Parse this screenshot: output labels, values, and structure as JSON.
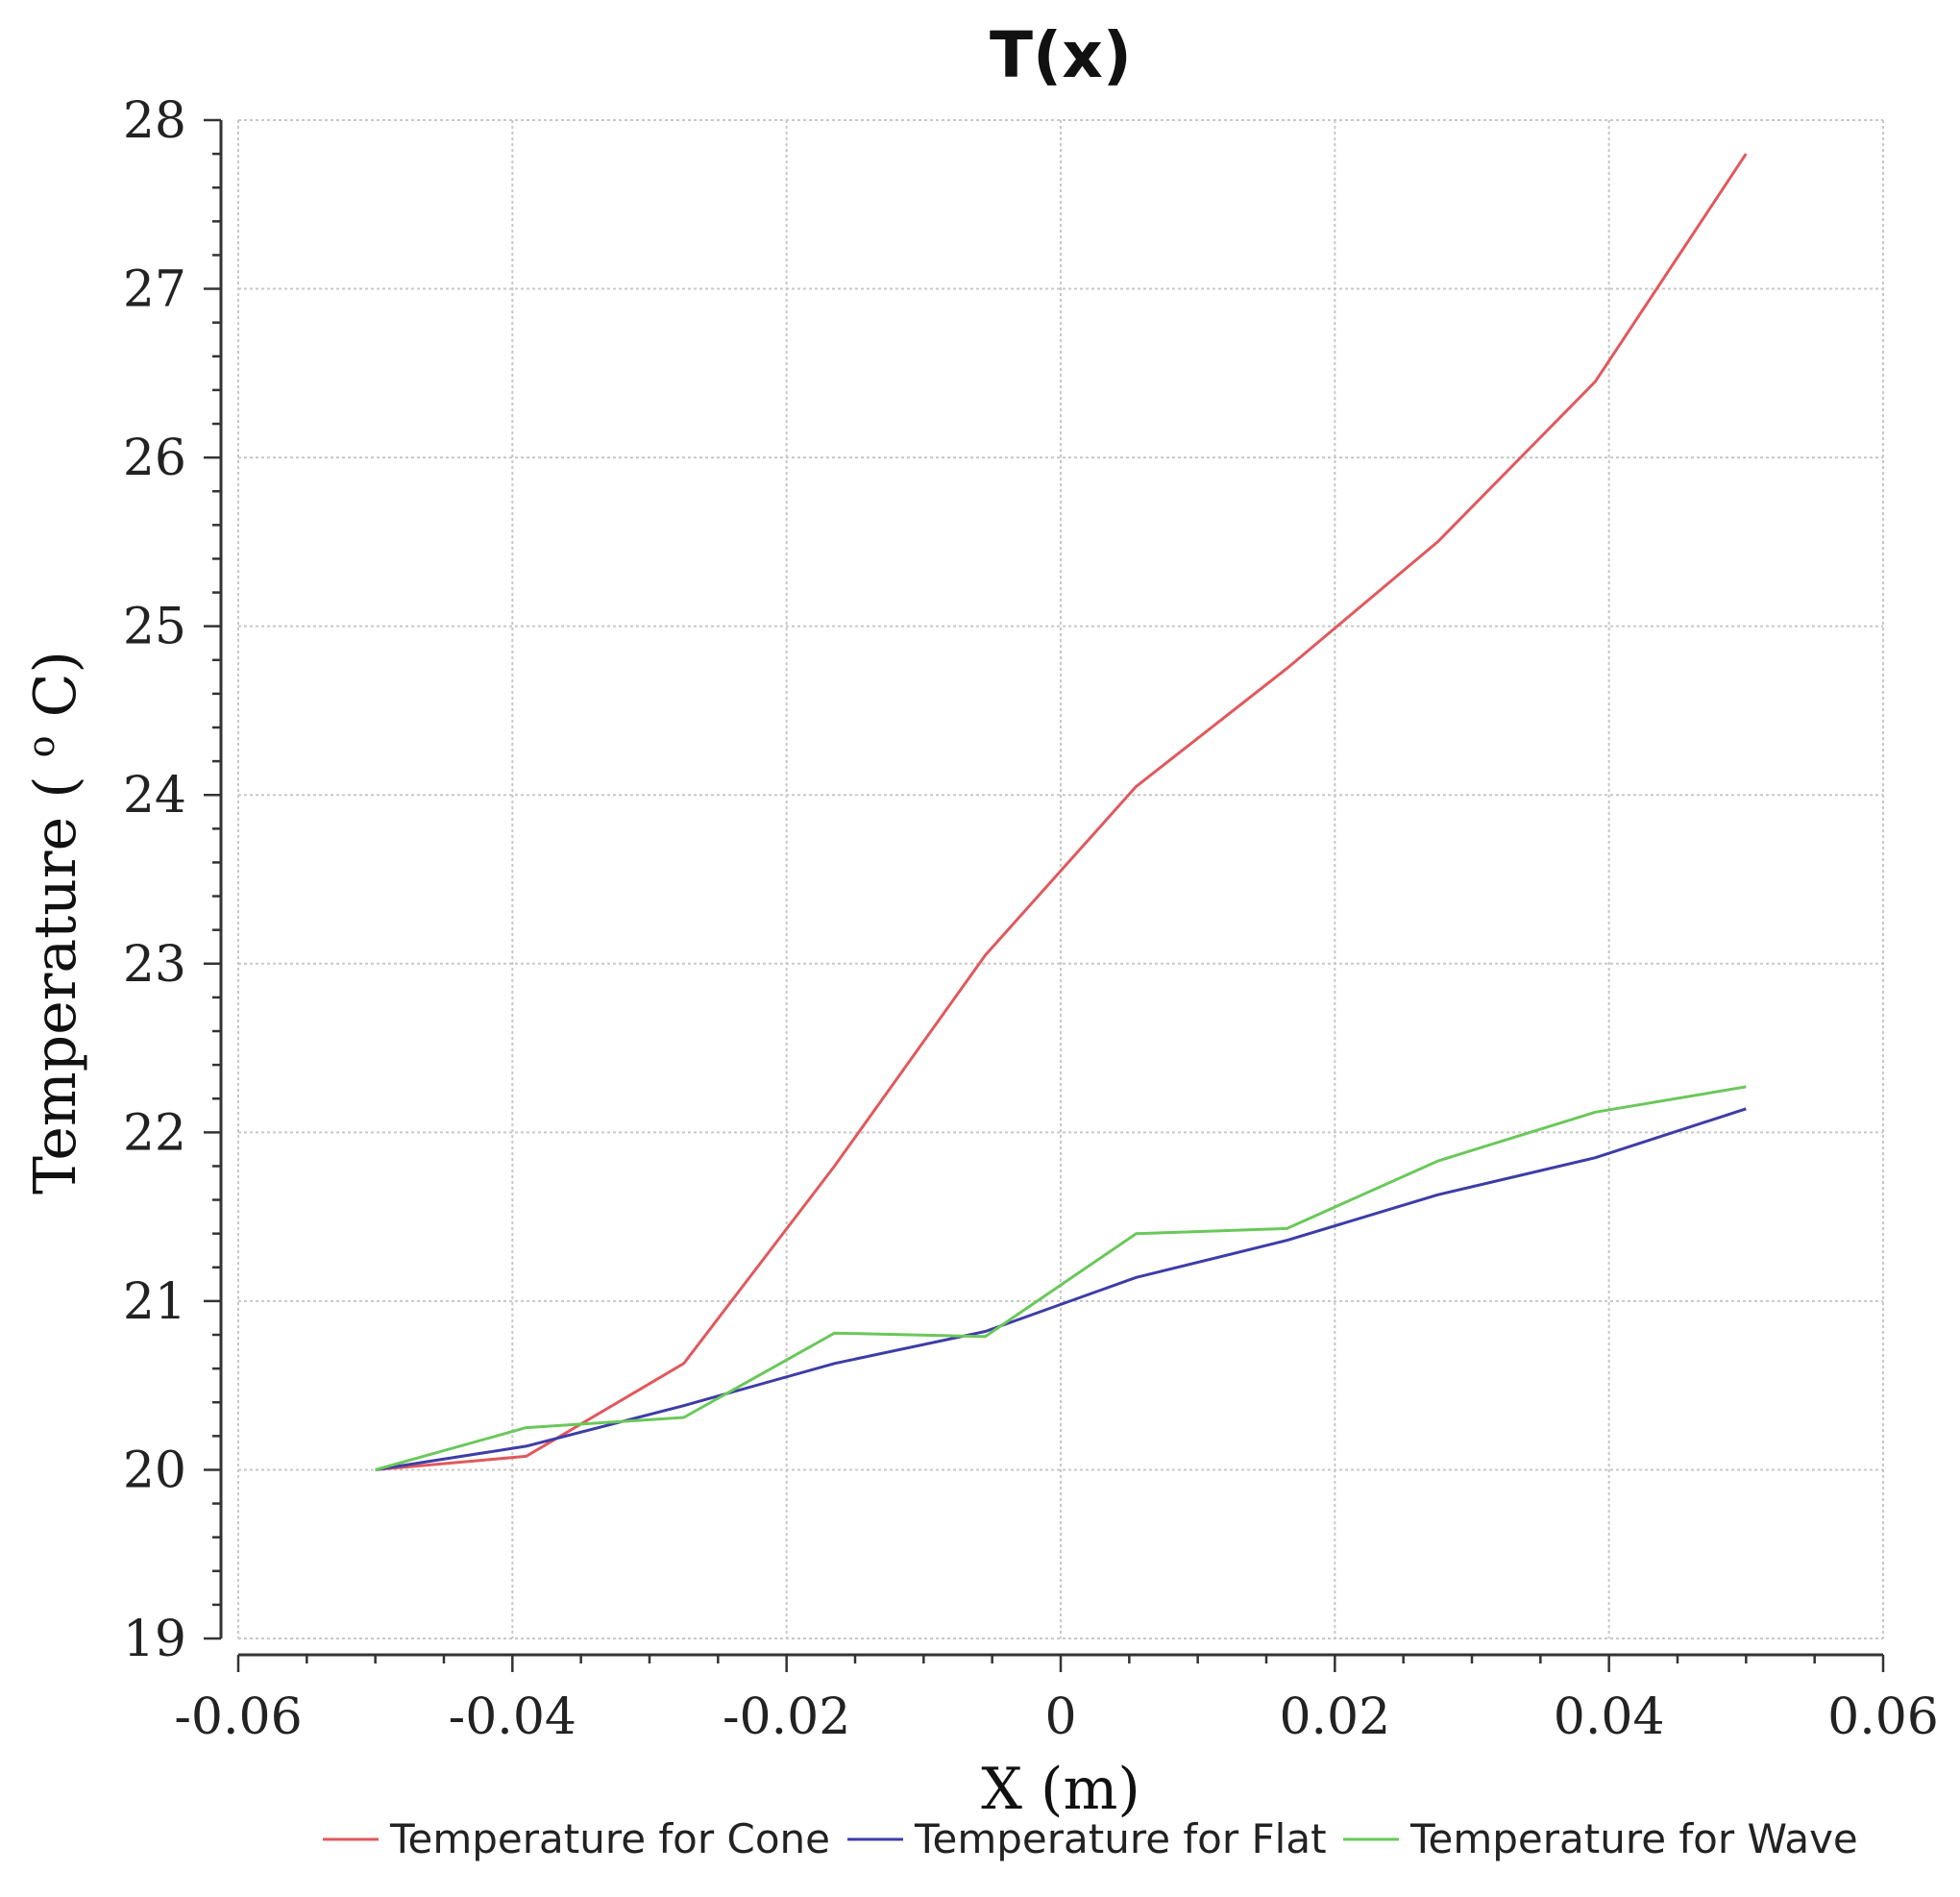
{
  "chart_data": {
    "type": "line",
    "title": "T(x)",
    "xlabel": "X (m)",
    "ylabel": "Temperature ( o C)",
    "ylabel_parts": {
      "prefix": "Temperature ( ",
      "sup": "o",
      "suffix": " C)"
    },
    "xlim": [
      -0.06,
      0.06
    ],
    "ylim": [
      19,
      28
    ],
    "xticks": [
      -0.06,
      -0.04,
      -0.02,
      0,
      0.02,
      0.04,
      0.06
    ],
    "xtick_labels": [
      "-0.06",
      "-0.04",
      "-0.02",
      "0",
      "0.02",
      "0.04",
      "0.06"
    ],
    "yticks": [
      19,
      20,
      21,
      22,
      23,
      24,
      25,
      26,
      27,
      28
    ],
    "ytick_labels": [
      "19",
      "20",
      "21",
      "22",
      "23",
      "24",
      "25",
      "26",
      "27",
      "28"
    ],
    "grid": true,
    "legend_position": "bottom",
    "series": [
      {
        "name": "Temperature for Cone",
        "color": "#e0595d",
        "x": [
          -0.05,
          -0.039,
          -0.0275,
          -0.0165,
          -0.0055,
          0.0055,
          0.0165,
          0.0275,
          0.039,
          0.05
        ],
        "y": [
          20.0,
          20.08,
          20.63,
          21.8,
          23.05,
          24.05,
          24.75,
          25.5,
          26.45,
          27.8
        ]
      },
      {
        "name": "Temperature for Flat",
        "color": "#3d3da8",
        "x": [
          -0.05,
          -0.039,
          -0.0275,
          -0.0165,
          -0.0055,
          0.0055,
          0.0165,
          0.0275,
          0.039,
          0.05
        ],
        "y": [
          20.0,
          20.14,
          20.38,
          20.63,
          20.82,
          21.14,
          21.36,
          21.63,
          21.85,
          22.14
        ]
      },
      {
        "name": "Temperature for Wave",
        "color": "#6ac85a",
        "x": [
          -0.05,
          -0.039,
          -0.0275,
          -0.0165,
          -0.0055,
          0.0055,
          0.0165,
          0.0275,
          0.039,
          0.05
        ],
        "y": [
          20.0,
          20.25,
          20.31,
          20.81,
          20.79,
          21.4,
          21.43,
          21.83,
          22.12,
          22.27
        ]
      }
    ]
  }
}
